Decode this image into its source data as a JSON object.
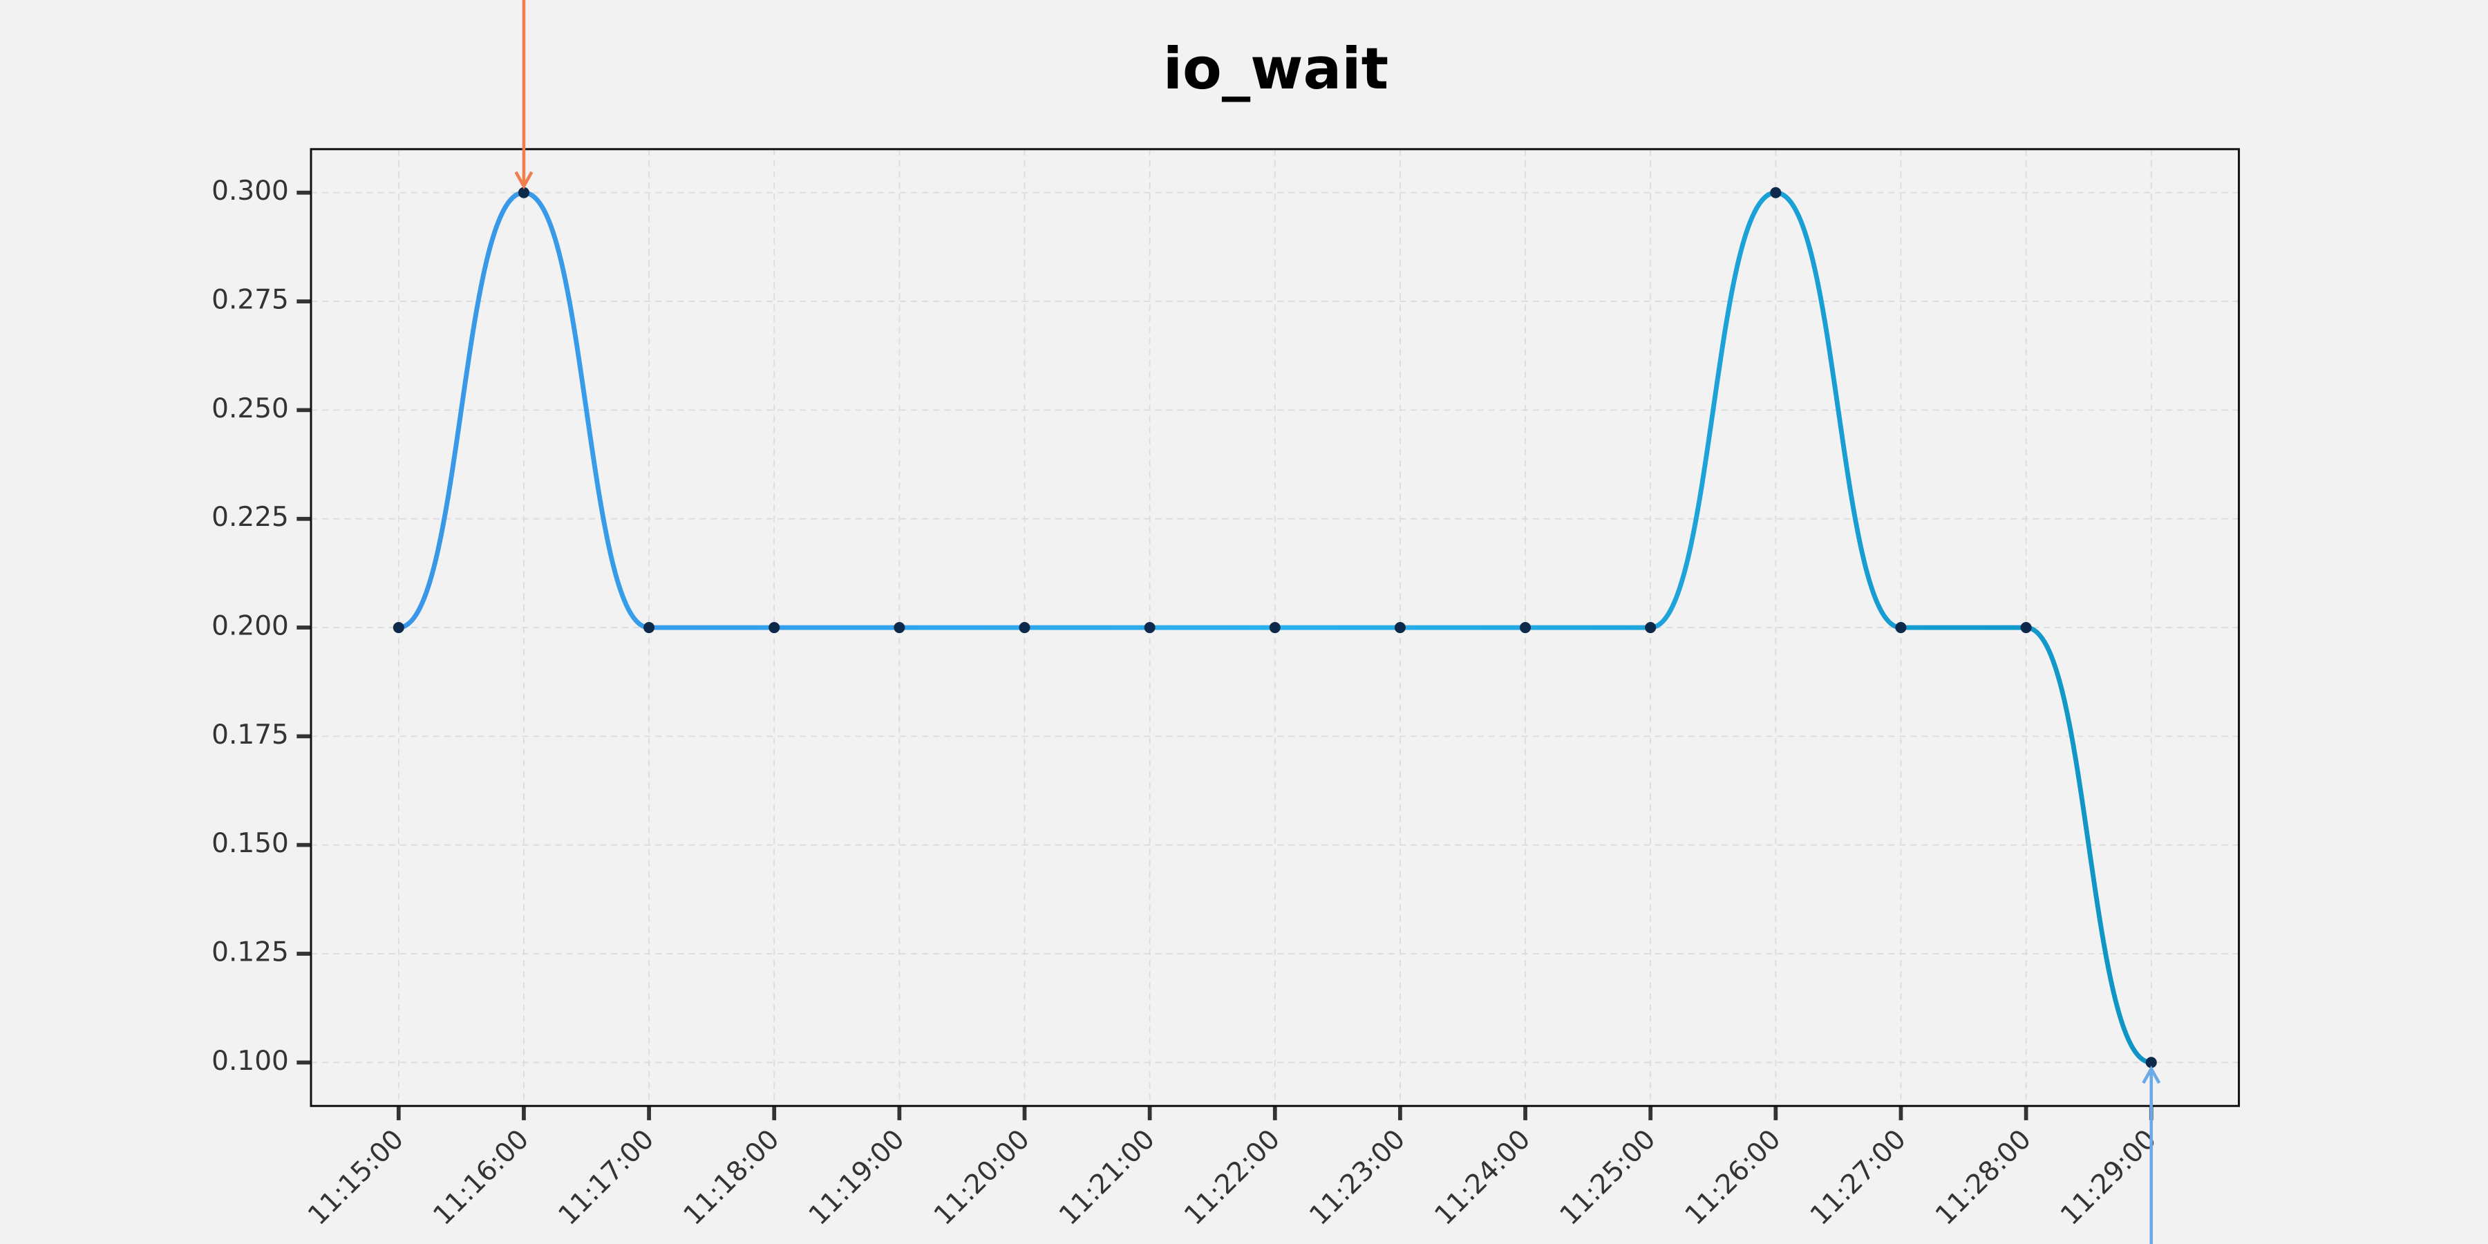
{
  "chart_data": {
    "type": "line",
    "title": "io_wait",
    "categories": [
      "11:15:00",
      "11:16:00",
      "11:17:00",
      "11:18:00",
      "11:19:00",
      "11:20:00",
      "11:21:00",
      "11:22:00",
      "11:23:00",
      "11:24:00",
      "11:25:00",
      "11:26:00",
      "11:27:00",
      "11:28:00",
      "11:29:00"
    ],
    "series": [
      {
        "name": "io_wait",
        "color": "#2a9fe0",
        "gradient": [
          "#3a96e8",
          "#2bb0ee",
          "#0e94c4"
        ],
        "values": [
          0.2,
          0.3,
          0.2,
          0.2,
          0.2,
          0.2,
          0.2,
          0.2,
          0.2,
          0.2,
          0.2,
          0.3,
          0.2,
          0.2,
          0.1
        ]
      }
    ],
    "marker_color": "#0d2a4a",
    "max_marker_color": "#f07f50",
    "min_marker_color": "#6aaae8",
    "ylim": [
      0.09,
      0.31
    ],
    "yticks": [
      {
        "value": 0.1,
        "label": "0.100"
      },
      {
        "value": 0.125,
        "label": "0.125"
      },
      {
        "value": 0.15,
        "label": "0.150"
      },
      {
        "value": 0.175,
        "label": "0.175"
      },
      {
        "value": 0.2,
        "label": "0.200"
      },
      {
        "value": 0.225,
        "label": "0.225"
      },
      {
        "value": 0.25,
        "label": "0.250"
      },
      {
        "value": 0.275,
        "label": "0.275"
      },
      {
        "value": 0.3,
        "label": "0.300"
      }
    ],
    "grid": true
  }
}
